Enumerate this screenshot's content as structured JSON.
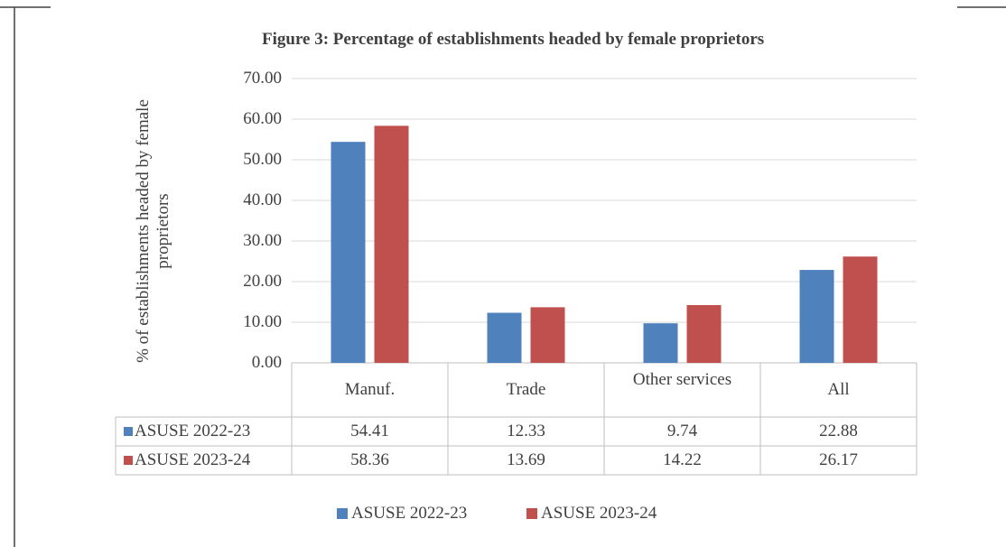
{
  "chart_data": {
    "type": "bar",
    "title": "Figure 3: Percentage of establishments headed by female proprietors",
    "y_label": "% of establishments headed by female proprietors",
    "categories": [
      "Manuf.",
      "Trade",
      "Other services",
      "All"
    ],
    "series": [
      {
        "name": "ASUSE 2022-23",
        "color": "#4f81bd",
        "values": [
          54.41,
          12.33,
          9.74,
          22.88
        ]
      },
      {
        "name": "ASUSE 2023-24",
        "color": "#c0504d",
        "values": [
          58.36,
          13.69,
          14.22,
          26.17
        ]
      }
    ],
    "ylim": [
      0,
      70
    ],
    "yticks": [
      {
        "value": 0,
        "label": "0.00"
      },
      {
        "value": 10,
        "label": "10.00"
      },
      {
        "value": 20,
        "label": "20.00"
      },
      {
        "value": 30,
        "label": "30.00"
      },
      {
        "value": 40,
        "label": "40.00"
      },
      {
        "value": 50,
        "label": "50.00"
      },
      {
        "value": 60,
        "label": "60.00"
      },
      {
        "value": 70,
        "label": "70.00"
      }
    ],
    "grid": true,
    "legend": "bottom"
  }
}
